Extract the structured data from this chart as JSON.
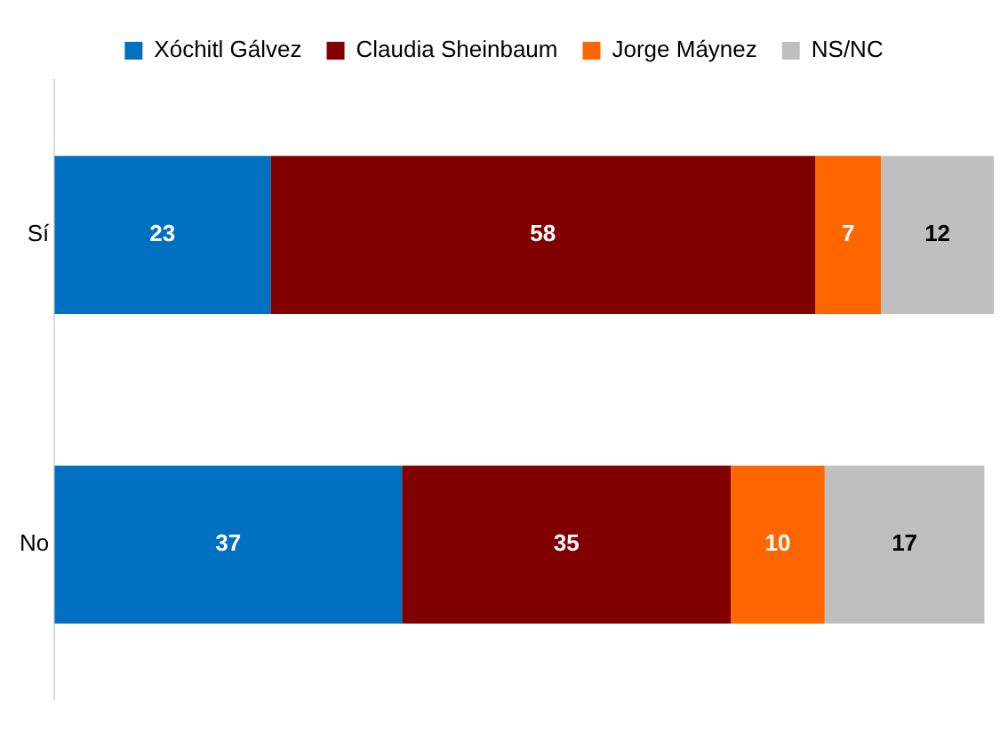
{
  "chart_data": {
    "type": "bar",
    "orientation": "horizontal",
    "stacked": true,
    "categories": [
      "Sí",
      "No"
    ],
    "series": [
      {
        "name": "Xóchitl Gálvez",
        "color": "#0070c0",
        "values": [
          23,
          37
        ]
      },
      {
        "name": "Claudia Sheinbaum",
        "color": "#800000",
        "values": [
          58,
          35
        ]
      },
      {
        "name": "Jorge Máynez",
        "color": "#ff6600",
        "values": [
          7,
          10
        ]
      },
      {
        "name": "NS/NC",
        "color": "#bfbfbf",
        "values": [
          12,
          17
        ]
      }
    ],
    "xlim": [
      0,
      100
    ],
    "tick_labels": "y",
    "grid": false,
    "legend": "top",
    "data_labels": true
  }
}
